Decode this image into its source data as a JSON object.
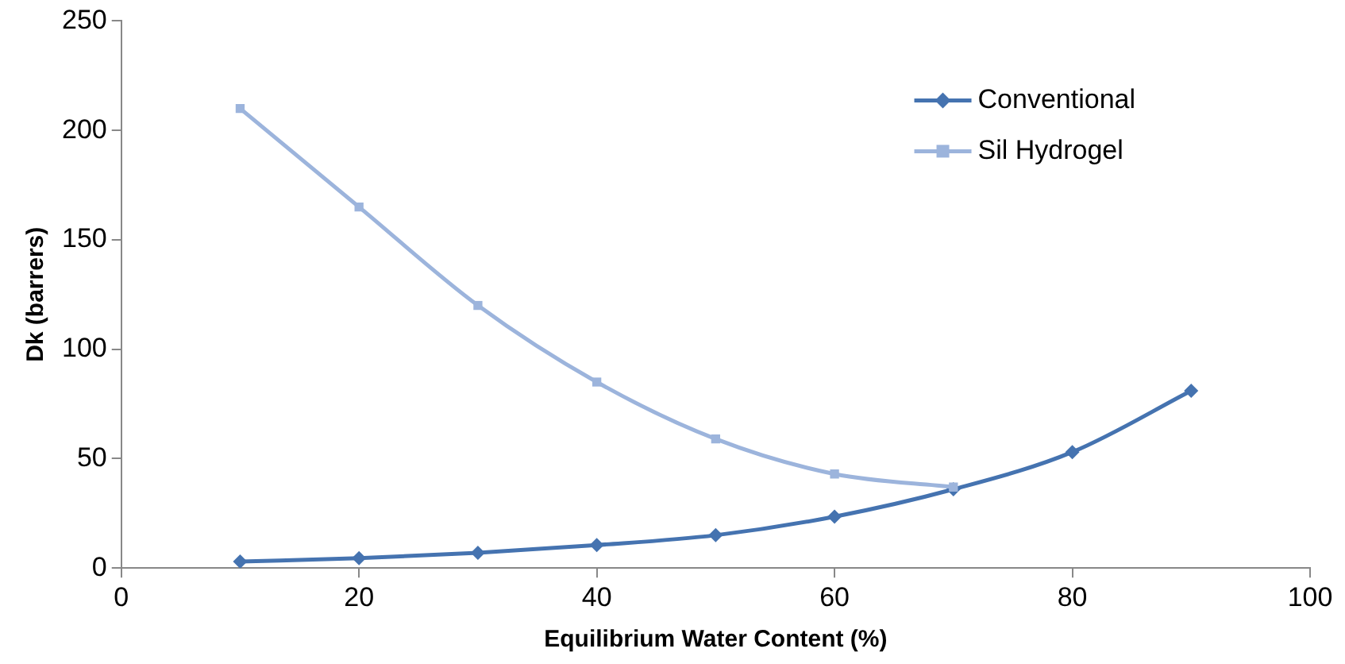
{
  "chart_data": {
    "type": "line",
    "xlabel": "Equilibrium Water Content (%)",
    "ylabel": "Dk (barrers)",
    "xlim": [
      0,
      100
    ],
    "xticks": [
      0,
      20,
      40,
      60,
      80,
      100
    ],
    "ylim": [
      0,
      250
    ],
    "yticks": [
      0,
      50,
      100,
      150,
      200,
      250
    ],
    "grid": false,
    "legend": "top right",
    "series": [
      {
        "name": "Conventional",
        "color": "#4573b0",
        "marker": "diamond",
        "x": [
          10,
          20,
          30,
          40,
          50,
          60,
          70,
          80,
          90
        ],
        "values": [
          3,
          4.5,
          7,
          10.5,
          15,
          23.5,
          36,
          53,
          81
        ]
      },
      {
        "name": "Sil Hydrogel",
        "color": "#9cb4dc",
        "marker": "square",
        "x": [
          10,
          20,
          30,
          40,
          50,
          60,
          70
        ],
        "values": [
          210,
          165,
          120,
          85,
          59,
          43,
          37
        ]
      }
    ]
  }
}
